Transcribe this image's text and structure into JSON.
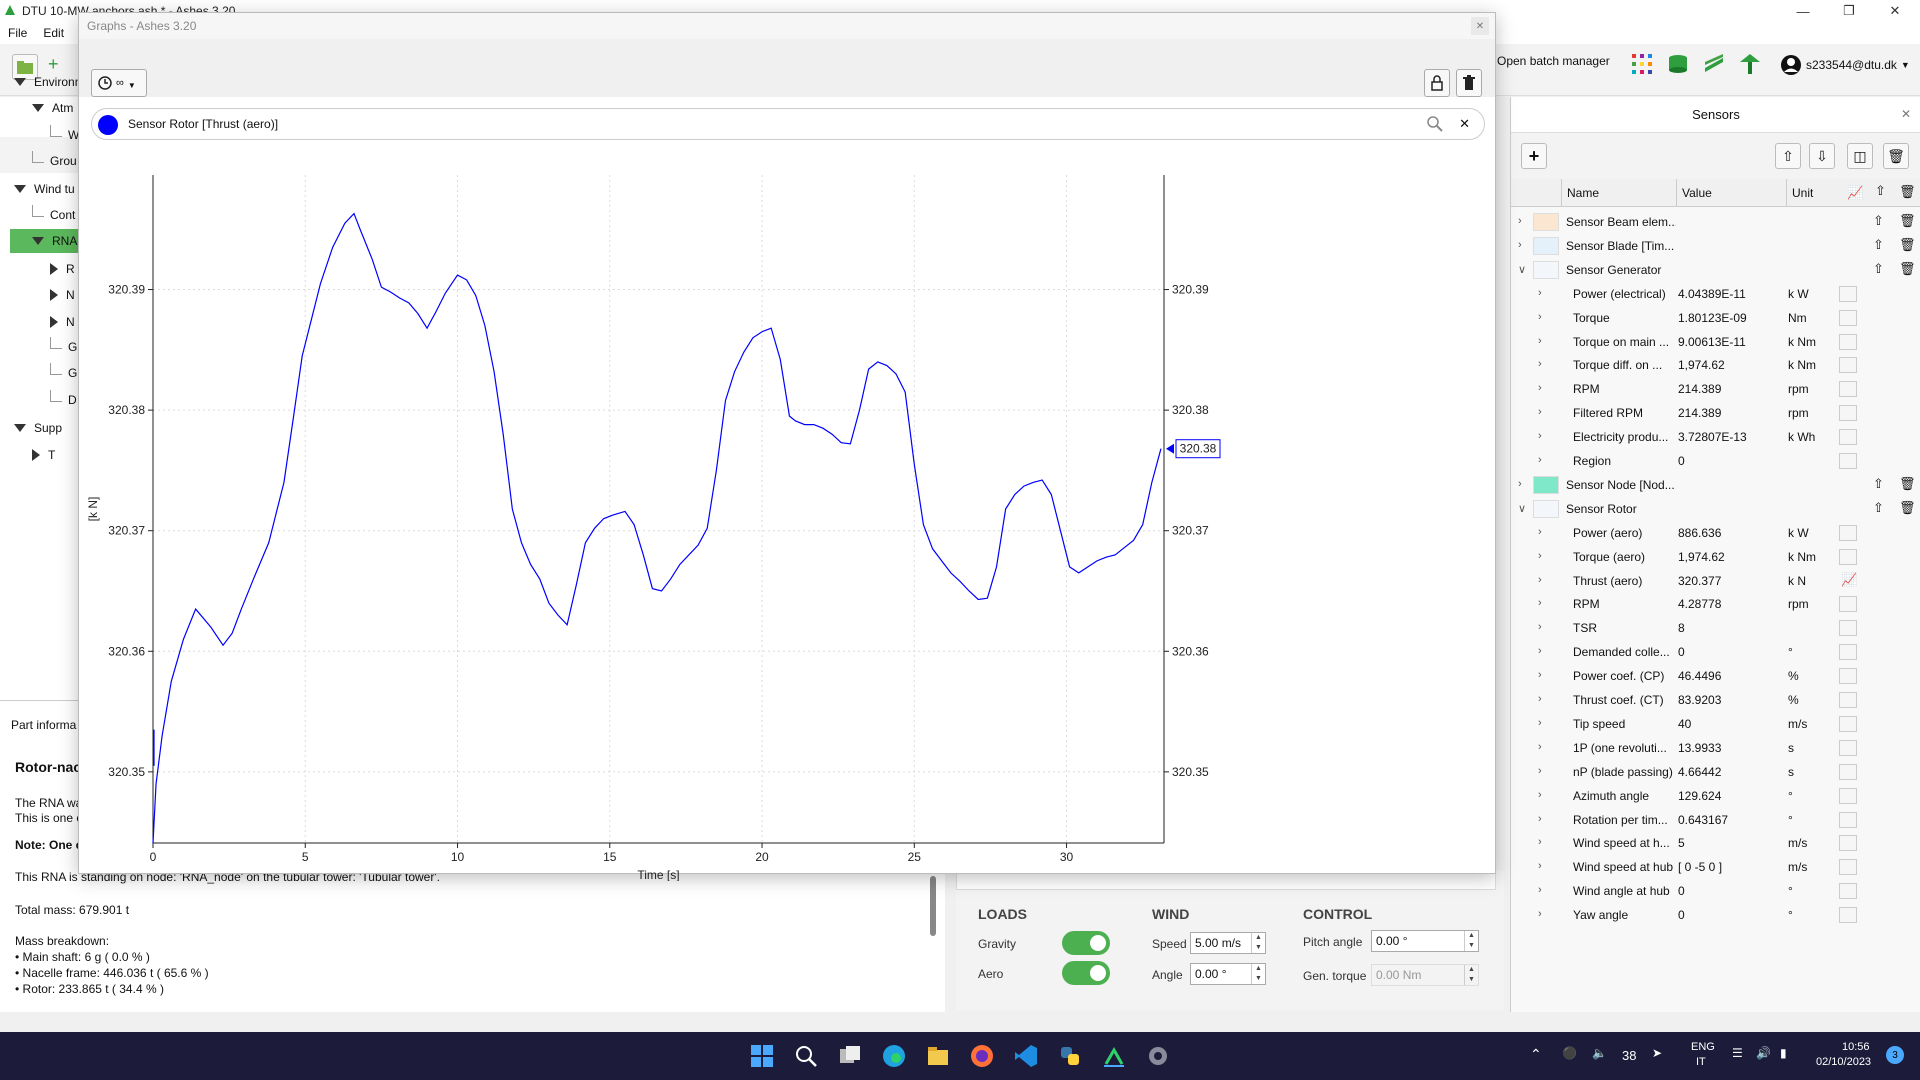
{
  "main_window": {
    "title": "DTU 10-MW anchors.ash * - Ashes 3.20",
    "menu": [
      "File",
      "Edit"
    ],
    "toolbar_right": {
      "batch_manager": "Open batch manager",
      "user": "s233544@dtu.dk"
    }
  },
  "tree": {
    "items": [
      {
        "label": "Environm",
        "indent": 0,
        "expanded": true
      },
      {
        "label": "Atm",
        "indent": 1,
        "expanded": true
      },
      {
        "label": "W",
        "indent": 2,
        "expanded": null
      },
      {
        "label": "Grou",
        "indent": 1,
        "expanded": null
      },
      {
        "label": "Wind tu",
        "indent": 0,
        "expanded": true
      },
      {
        "label": "Cont",
        "indent": 1,
        "expanded": null
      },
      {
        "label": "RNA",
        "indent": 1,
        "expanded": true,
        "selected": true
      },
      {
        "label": "R",
        "indent": 2,
        "expanded": false
      },
      {
        "label": "N",
        "indent": 2,
        "expanded": false
      },
      {
        "label": "N",
        "indent": 2,
        "expanded": false
      },
      {
        "label": "G",
        "indent": 2,
        "expanded": null
      },
      {
        "label": "G",
        "indent": 2,
        "expanded": null
      },
      {
        "label": "D",
        "indent": 2,
        "expanded": null
      },
      {
        "label": "Supp",
        "indent": 0,
        "expanded": true
      },
      {
        "label": "T",
        "indent": 1,
        "expanded": false
      }
    ]
  },
  "part_info": {
    "tab": "Part informa",
    "title": "Rotor-nac",
    "lines": [
      "The RNA wa",
      "This is one c",
      "Note: One c",
      "This RNA is standing on node: 'RNA_node' on the tubular tower: 'Tubular tower'.",
      "Total mass: 679.901 t",
      "Mass breakdown:",
      "• Main shaft: 6 g ( 0.0 % )",
      "• Nacelle frame: 446.036 t ( 65.6 % )",
      "• Rotor: 233.865 t ( 34.4 % )"
    ]
  },
  "controls": {
    "loads": {
      "title": "LOADS",
      "gravity": "Gravity",
      "aero": "Aero"
    },
    "wind": {
      "title": "WIND",
      "speed_label": "Speed",
      "speed": "5.00 m/s",
      "angle_label": "Angle",
      "angle": "0.00 °"
    },
    "control": {
      "title": "CONTROL",
      "pitch_label": "Pitch angle",
      "pitch": "0.00 °",
      "torque_label": "Gen. torque",
      "torque": "0.00 Nm"
    }
  },
  "graphs": {
    "title": "Graphs - Ashes 3.20",
    "time_button": "∞",
    "series_label": "Sensor Rotor [Thrust (aero)]",
    "series_color": "#0000ff"
  },
  "chart_data": {
    "type": "line",
    "xlabel": "Time [s]",
    "ylabel": "[k N]",
    "xlim": [
      0,
      33.2
    ],
    "ylim": [
      320.3441,
      320.3995
    ],
    "xticks": [
      0,
      5,
      10,
      15,
      20,
      25,
      30
    ],
    "yticks": [
      320.35,
      320.36,
      320.37,
      320.38,
      320.39
    ],
    "ytick_labels": [
      "320.35",
      "320.36",
      "320.37",
      "320.38",
      "320.39"
    ],
    "grid": true,
    "current_value_label": "320.38",
    "series": [
      {
        "color": "#0000ff",
        "x": [
          0,
          0.1,
          0.3,
          0.6,
          1.0,
          1.4,
          1.9,
          2.3,
          2.6,
          2.9,
          3.3,
          3.8,
          4.3,
          4.6,
          4.9,
          5.2,
          5.5,
          5.9,
          6.3,
          6.6,
          6.8,
          7.2,
          7.5,
          7.8,
          8.1,
          8.4,
          8.7,
          9.0,
          9.3,
          9.6,
          10.0,
          10.3,
          10.6,
          10.9,
          11.2,
          11.5,
          11.8,
          12.1,
          12.4,
          12.7,
          13.0,
          13.3,
          13.6,
          13.9,
          14.2,
          14.5,
          14.8,
          15.1,
          15.5,
          15.8,
          16.1,
          16.4,
          16.7,
          17.0,
          17.3,
          17.6,
          17.9,
          18.2,
          18.5,
          18.8,
          19.1,
          19.4,
          19.7,
          20.0,
          20.3,
          20.6,
          20.9,
          21.1,
          21.4,
          21.7,
          22.0,
          22.3,
          22.6,
          22.9,
          23.2,
          23.5,
          23.8,
          24.1,
          24.4,
          24.7,
          25.0,
          25.3,
          25.6,
          25.9,
          26.2,
          26.5,
          26.8,
          27.1,
          27.4,
          27.7,
          28.0,
          28.3,
          28.6,
          28.9,
          29.2,
          29.5,
          29.8,
          30.1,
          30.4,
          30.7,
          31.0,
          31.3,
          31.6,
          31.9,
          32.2,
          32.5,
          32.8,
          33.1
        ],
        "y": [
          320.3441,
          320.349,
          320.353,
          320.3575,
          320.361,
          320.3635,
          320.362,
          320.3605,
          320.3615,
          320.3635,
          320.366,
          320.369,
          320.374,
          320.3792,
          320.3845,
          320.3875,
          320.3905,
          320.3935,
          320.3955,
          320.3963,
          320.395,
          320.3925,
          320.3902,
          320.3898,
          320.3893,
          320.3889,
          320.388,
          320.3868,
          320.3882,
          320.3897,
          320.3912,
          320.3908,
          320.3895,
          320.387,
          320.3832,
          320.378,
          320.3718,
          320.369,
          320.3672,
          320.366,
          320.364,
          320.363,
          320.3622,
          320.3655,
          320.369,
          320.3702,
          320.371,
          320.3713,
          320.3716,
          320.3705,
          320.368,
          320.3652,
          320.365,
          320.366,
          320.3672,
          320.368,
          320.3688,
          320.3702,
          320.375,
          320.3808,
          320.3832,
          320.3848,
          320.386,
          320.3865,
          320.3868,
          320.3842,
          320.3795,
          320.3791,
          320.3788,
          320.3788,
          320.3785,
          320.378,
          320.3773,
          320.3772,
          320.38,
          320.3834,
          320.384,
          320.3837,
          320.383,
          320.3815,
          320.3755,
          320.3705,
          320.3685,
          320.3675,
          320.3665,
          320.3658,
          320.365,
          320.3643,
          320.3644,
          320.367,
          320.3718,
          320.373,
          320.3737,
          320.374,
          320.3742,
          320.373,
          320.37,
          320.367,
          320.3665,
          320.367,
          320.3675,
          320.3678,
          320.368,
          320.3686,
          320.3692,
          320.3705,
          320.374,
          320.3768
        ]
      }
    ]
  },
  "sensors": {
    "title": "Sensors",
    "columns": {
      "name": "Name",
      "value": "Value",
      "unit": "Unit"
    },
    "rows": [
      {
        "kind": "group",
        "name": "Sensor Beam elem...",
        "color": "#fbe6d1",
        "expanded": false
      },
      {
        "kind": "group",
        "name": "Sensor Blade [Tim...",
        "color": "#e4f1fb",
        "expanded": false
      },
      {
        "kind": "group",
        "name": "Sensor Generator",
        "color": "#f3f7fb",
        "expanded": true
      },
      {
        "kind": "item",
        "name": "Power (electrical)",
        "value": "4.04389E-11",
        "unit": "k W"
      },
      {
        "kind": "item",
        "name": "Torque",
        "value": "1.80123E-09",
        "unit": "Nm"
      },
      {
        "kind": "item",
        "name": "Torque on main ...",
        "value": "9.00613E-11",
        "unit": "k Nm"
      },
      {
        "kind": "item",
        "name": "Torque diff. on ...",
        "value": "1,974.62",
        "unit": "k Nm"
      },
      {
        "kind": "item",
        "name": "RPM",
        "value": "214.389",
        "unit": "rpm"
      },
      {
        "kind": "item",
        "name": "Filtered RPM",
        "value": "214.389",
        "unit": "rpm"
      },
      {
        "kind": "item",
        "name": "Electricity produ...",
        "value": "3.72807E-13",
        "unit": "k Wh"
      },
      {
        "kind": "item",
        "name": "Region",
        "value": "0",
        "unit": ""
      },
      {
        "kind": "group",
        "name": "Sensor Node [Nod...",
        "color": "#7fe8c8",
        "expanded": false
      },
      {
        "kind": "group",
        "name": "Sensor Rotor",
        "color": "#f3f7fb",
        "expanded": true
      },
      {
        "kind": "item",
        "name": "Power (aero)",
        "value": "886.636",
        "unit": "k W"
      },
      {
        "kind": "item",
        "name": "Torque (aero)",
        "value": "1,974.62",
        "unit": "k Nm"
      },
      {
        "kind": "item",
        "name": "Thrust (aero)",
        "value": "320.377",
        "unit": "k N",
        "plotted": true
      },
      {
        "kind": "item",
        "name": "RPM",
        "value": "4.28778",
        "unit": "rpm"
      },
      {
        "kind": "item",
        "name": "TSR",
        "value": "8",
        "unit": ""
      },
      {
        "kind": "item",
        "name": "Demanded colle...",
        "value": "0",
        "unit": "°"
      },
      {
        "kind": "item",
        "name": "Power coef. (CP)",
        "value": "46.4496",
        "unit": "%"
      },
      {
        "kind": "item",
        "name": "Thrust coef. (CT)",
        "value": "83.9203",
        "unit": "%"
      },
      {
        "kind": "item",
        "name": "Tip speed",
        "value": "40",
        "unit": "m/s"
      },
      {
        "kind": "item",
        "name": "1P (one revoluti...",
        "value": "13.9933",
        "unit": "s"
      },
      {
        "kind": "item",
        "name": "nP (blade passing)",
        "value": "4.66442",
        "unit": "s"
      },
      {
        "kind": "item",
        "name": "Azimuth angle",
        "value": "129.624",
        "unit": "°"
      },
      {
        "kind": "item",
        "name": "Rotation per tim...",
        "value": "0.643167",
        "unit": "°"
      },
      {
        "kind": "item",
        "name": "Wind speed at h...",
        "value": "5",
        "unit": "m/s"
      },
      {
        "kind": "item",
        "name": "Wind speed at hub",
        "value": "[ 0 -5 0 ]",
        "unit": "m/s"
      },
      {
        "kind": "item",
        "name": "Wind angle at hub",
        "value": "0",
        "unit": "°"
      },
      {
        "kind": "item",
        "name": "Yaw angle",
        "value": "0",
        "unit": "°"
      }
    ]
  },
  "taskbar": {
    "temperature": "38",
    "lang": "ENG",
    "region": "IT",
    "time": "10:56",
    "date": "02/10/2023",
    "notifications": "3"
  }
}
